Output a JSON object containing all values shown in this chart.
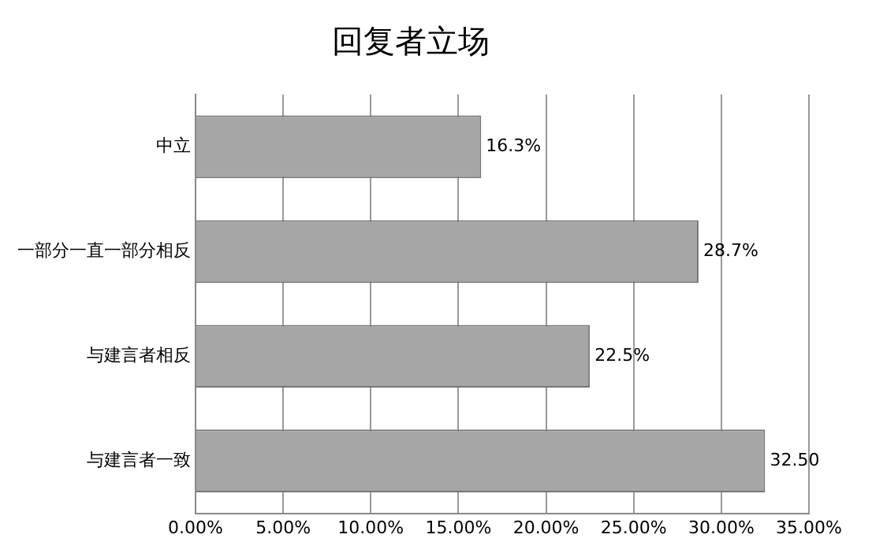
{
  "chart_data": {
    "type": "bar",
    "orientation": "horizontal",
    "title": "回复者立场",
    "categories": [
      "中立",
      "一部分一直一部分相反",
      "与建言者相反",
      "与建言者一致"
    ],
    "values": [
      16.3,
      28.7,
      22.5,
      32.5
    ],
    "color": "#a6a6a6",
    "value_labels": [
      "16.3%",
      "28.7%",
      "22.5%",
      "32.50"
    ],
    "xlim": [
      0,
      35
    ],
    "xticks": [
      {
        "value": 0,
        "label": "0.00%"
      },
      {
        "value": 5,
        "label": "5.00%"
      },
      {
        "value": 10,
        "label": "10.00%"
      },
      {
        "value": 15,
        "label": "15.00%"
      },
      {
        "value": 20,
        "label": "20.00%"
      },
      {
        "value": 25,
        "label": "25.00%"
      },
      {
        "value": 30,
        "label": "30.00%"
      },
      {
        "value": 35,
        "label": "35.00%"
      }
    ],
    "grid": "x",
    "legend": false
  }
}
